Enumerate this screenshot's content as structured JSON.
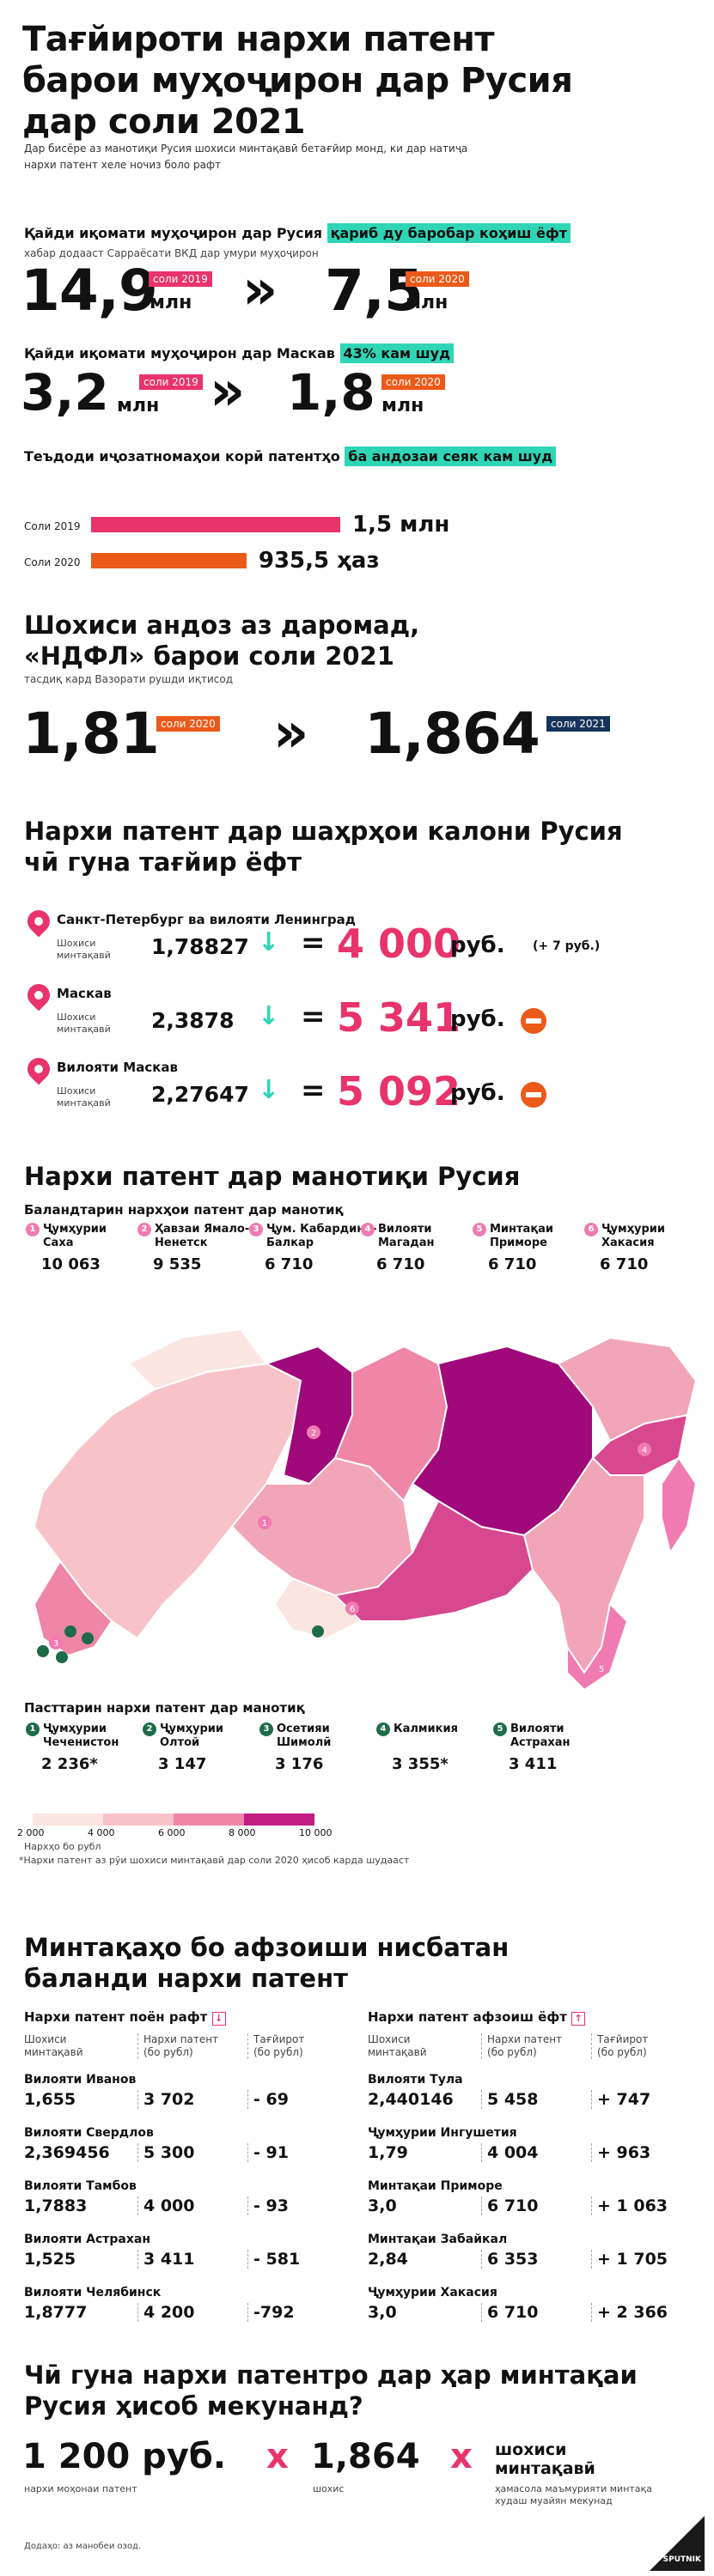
{
  "title": "Тағйироти нархи патент барои муҳоҷирон дар Русия дар соли 2021",
  "title_lines": [
    "Тағйироти нархи патент",
    "барои муҳоҷирон дар Русия",
    "дар соли 2021"
  ],
  "intro_lines": [
    "Дар бисёре аз манотиқи Русия шохиси минтақавӣ бетағйир монд, ки дар натиҷа",
    "нархи патент хеле ночиз боло рафт"
  ],
  "section1": {
    "q1": "Қайди иқомати муҳоҷирон дар Русия",
    "q1_highlight": "қариб ду баробар коҳиш ёфт",
    "q1_sub": "хабар додааст Сарраёсати ВКД дар умури муҳоҷирон",
    "v2019": "14,9",
    "v2019_unit": "млн",
    "v2019_badge": "соли 2019",
    "v2020": "7,5",
    "v2020_unit": "млн",
    "v2020_badge": "соли 2020",
    "q2": "Қайди иқомати муҳоҷирон дар Маскав",
    "q2_highlight": "43% кам шуд",
    "m2019": "3,2",
    "m2019_unit": "млн",
    "m2019_badge": "соли 2019",
    "m2020": "1,8",
    "m2020_unit": "млн",
    "m2020_badge": "соли 2020",
    "q3": "Теъдоди иҷозатномаҳои корӣ патентҳо",
    "q3_highlight": "ба андозаи сеяк кам шуд",
    "bars": [
      {
        "label": "Соли 2019",
        "value_text": "1,5 млн",
        "value": 1500000,
        "color": "#e8336b"
      },
      {
        "label": "Соли 2020",
        "value_text": "935,5 ҳаз",
        "value": 935500,
        "color": "#ec5a1a"
      }
    ]
  },
  "section2": {
    "title_lines": [
      "Шохиси андоз аз даромад,",
      "«НДФЛ» барои соли 2021"
    ],
    "sub": "тасдиқ кард Вазорати рушди иқтисод",
    "v2020": "1,81",
    "v2020_badge": "соли 2020",
    "v2021": "1,864",
    "v2021_badge": "соли 2021"
  },
  "section3": {
    "title_lines": [
      "Нархи патент дар шаҳрҳои калони Русия",
      "чӣ гуна тағйир ёфт"
    ],
    "coef_label_lines": [
      "Шохиси",
      "минтақавӣ"
    ],
    "cities": [
      {
        "name": "Санкт-Петербург ва вилояти Ленинград",
        "coef": "1,78827",
        "price": "4 000",
        "currency": "руб.",
        "note": "(+ 7 руб.)",
        "stop": false
      },
      {
        "name": "Маскав",
        "coef": "2,3878",
        "price": "5 341",
        "currency": "руб.",
        "note": "",
        "stop": true
      },
      {
        "name": "Вилояти Маскав",
        "coef": "2,27647",
        "price": "5 092",
        "currency": "руб.",
        "note": "",
        "stop": true
      }
    ]
  },
  "section4": {
    "title": "Нархи патент дар манотиқи Русия",
    "highest_title": "Баландтарин нархҳои патент дар манотиқ",
    "highest": [
      {
        "n": "1",
        "name_lines": [
          "Ҷумҳурии",
          "Саха"
        ],
        "value": "10 063"
      },
      {
        "n": "2",
        "name_lines": [
          "Ҳавзаи Ямало-",
          "Ненетск"
        ],
        "value": "9 535"
      },
      {
        "n": "3",
        "name_lines": [
          "Ҷум. Кабардино-",
          "Балкар"
        ],
        "value": "6 710"
      },
      {
        "n": "4",
        "name_lines": [
          "Вилояти",
          "Магадан"
        ],
        "value": "6 710"
      },
      {
        "n": "5",
        "name_lines": [
          "Минтақаи",
          "Приморе"
        ],
        "value": "6 710"
      },
      {
        "n": "6",
        "name_lines": [
          "Ҷумҳурии",
          "Хакасия"
        ],
        "value": "6 710"
      }
    ],
    "lowest_title": "Пасттарин нархи патент дар манотиқ",
    "lowest": [
      {
        "n": "1",
        "name_lines": [
          "Ҷумҳурии",
          "Чеченистон"
        ],
        "value": "2 236",
        "star": "*"
      },
      {
        "n": "2",
        "name_lines": [
          "Ҷумҳурии",
          "Олтой"
        ],
        "value": "3 147",
        "star": ""
      },
      {
        "n": "3",
        "name_lines": [
          "Осетияи",
          "Шимолӣ"
        ],
        "value": "3 176",
        "star": ""
      },
      {
        "n": "4",
        "name_lines": [
          "Калмикия"
        ],
        "value": "3 355",
        "star": "*"
      },
      {
        "n": "5",
        "name_lines": [
          "Вилояти",
          "Астрахан"
        ],
        "value": "3 411",
        "star": ""
      }
    ],
    "legend_ticks": [
      "2 000",
      "4 000",
      "6 000",
      "8 000",
      "10 000"
    ],
    "legend_colors": [
      "#fbe6e2",
      "#f7c3c8",
      "#ef86a8",
      "#c21d83"
    ],
    "legend_caption": "Нархҳо бо рубл",
    "footnote": "*Нархи патент аз рӯи шохиси минтақавӣ дар соли 2020 ҳисоб карда шудааст"
  },
  "section5": {
    "title_lines": [
      "Минтақаҳо бо афзоиши нисбатан",
      "баланди нархи патент"
    ],
    "down_title": "Нархи патент поён рафт",
    "up_title": "Нархи патент афзоиш ёфт",
    "col_heads": [
      [
        "Шохиси",
        "минтақавӣ"
      ],
      [
        "Нархи патент",
        "(бо рубл)"
      ],
      [
        "Тағйирот",
        "(бо рубл)"
      ]
    ],
    "down": [
      {
        "name": "Вилояти Иванов",
        "coef": "1,655",
        "price": "3 702",
        "change": "- 69"
      },
      {
        "name": "Вилояти Свердлов",
        "coef": "2,369456",
        "price": "5 300",
        "change": "- 91"
      },
      {
        "name": "Вилояти Тамбов",
        "coef": "1,7883",
        "price": "4 000",
        "change": "- 93"
      },
      {
        "name": "Вилояти Астрахан",
        "coef": "1,525",
        "price": "3 411",
        "change": "- 581"
      },
      {
        "name": "Вилояти Челябинск",
        "coef": "1,8777",
        "price": "4 200",
        "change": "-792"
      }
    ],
    "up": [
      {
        "name": "Вилояти Тула",
        "coef": "2,440146",
        "price": "5 458",
        "change": "+ 747"
      },
      {
        "name": "Ҷумҳурии Ингушетия",
        "coef": "1,79",
        "price": "4 004",
        "change": "+ 963"
      },
      {
        "name": "Минтақаи Приморе",
        "coef": "3,0",
        "price": "6 710",
        "change": "+ 1 063"
      },
      {
        "name": "Минтақаи Забайкал",
        "coef": "2,84",
        "price": "6 353",
        "change": "+ 1 705"
      },
      {
        "name": "Ҷумҳурии Хакасия",
        "coef": "3,0",
        "price": "6 710",
        "change": "+ 2 366"
      }
    ]
  },
  "section6": {
    "title_lines": [
      "Чӣ гуна нархи патентро дар ҳар минтақаи",
      "Русия ҳисоб мекунанд?"
    ],
    "base": "1 200 руб.",
    "base_caption": "нархи моҳонаи патент",
    "times": "x",
    "coef": "1,864",
    "coef_caption": "шохис",
    "region_lines": [
      "шохиси",
      "минтақавӣ"
    ],
    "region_caption_lines": [
      "ҳамасола маъмурияти минтақа",
      "худаш муайян мекунад"
    ],
    "source": "Додаҳо: аз манобеи озод.",
    "logo": "SPUTNIK"
  },
  "colors": {
    "pink": "#e8336b",
    "orange": "#ec5a1a",
    "teal": "#2fd5b6",
    "navy": "#16335c",
    "magenta": "#a0097a"
  }
}
